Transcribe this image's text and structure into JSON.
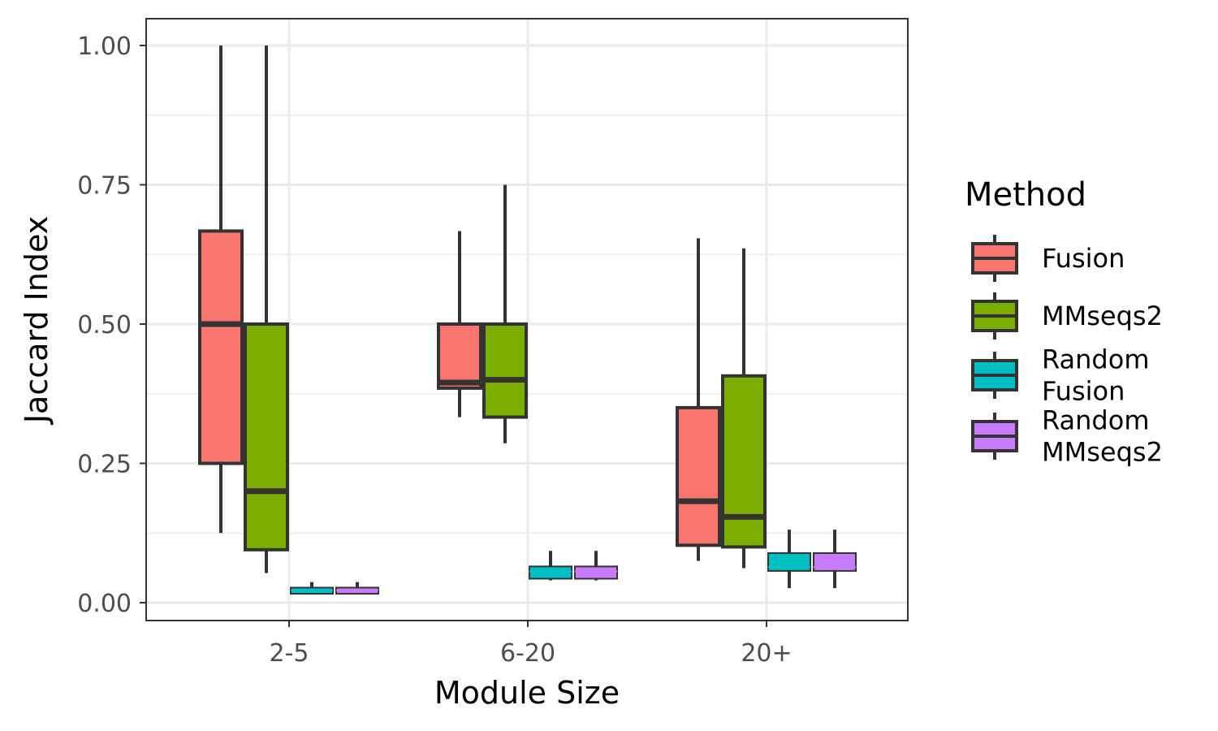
{
  "chart_data": {
    "type": "boxplot",
    "xlabel": "Module Size",
    "ylabel": "Jaccard Index",
    "categories": [
      "2-5",
      "6-20",
      "20+"
    ],
    "ylim": [
      -0.03,
      1.05
    ],
    "yticks": [
      {
        "value": 0.0,
        "label": "0.00"
      },
      {
        "value": 0.25,
        "label": "0.25"
      },
      {
        "value": 0.5,
        "label": "0.50"
      },
      {
        "value": 0.75,
        "label": "0.75"
      },
      {
        "value": 1.0,
        "label": "1.00"
      }
    ],
    "grid": true,
    "legend": {
      "title": "Method",
      "placement": "right",
      "items": [
        {
          "label_lines": [
            "Fusion"
          ]
        },
        {
          "label_lines": [
            "MMseqs2"
          ]
        },
        {
          "label_lines": [
            "Random",
            "Fusion"
          ]
        },
        {
          "label_lines": [
            "Random",
            "MMseqs2"
          ]
        }
      ]
    },
    "series": [
      {
        "color": "#F8766D",
        "boxes": [
          {
            "lower": 0.125,
            "q1": 0.25,
            "median": 0.5,
            "q3": 0.667,
            "upper": 1.0
          },
          {
            "lower": 0.333,
            "q1": 0.385,
            "median": 0.395,
            "q3": 0.5,
            "upper": 0.667
          },
          {
            "lower": 0.075,
            "q1": 0.103,
            "median": 0.182,
            "q3": 0.35,
            "upper": 0.654
          }
        ]
      },
      {
        "color": "#7CAE00",
        "boxes": [
          {
            "lower": 0.053,
            "q1": 0.095,
            "median": 0.2,
            "q3": 0.5,
            "upper": 1.0
          },
          {
            "lower": 0.286,
            "q1": 0.333,
            "median": 0.4,
            "q3": 0.5,
            "upper": 0.75
          },
          {
            "lower": 0.062,
            "q1": 0.1,
            "median": 0.154,
            "q3": 0.407,
            "upper": 0.636
          }
        ]
      },
      {
        "color": "#00BFC4",
        "boxes": [
          {
            "lower": 0.016,
            "q1": 0.016,
            "median": 0.022,
            "q3": 0.027,
            "upper": 0.037
          },
          {
            "lower": 0.04,
            "q1": 0.043,
            "median": 0.056,
            "q3": 0.065,
            "upper": 0.093
          },
          {
            "lower": 0.026,
            "q1": 0.057,
            "median": 0.064,
            "q3": 0.089,
            "upper": 0.131
          }
        ]
      },
      {
        "color": "#C77CFF",
        "boxes": [
          {
            "lower": 0.016,
            "q1": 0.016,
            "median": 0.022,
            "q3": 0.027,
            "upper": 0.037
          },
          {
            "lower": 0.04,
            "q1": 0.043,
            "median": 0.056,
            "q3": 0.065,
            "upper": 0.093
          },
          {
            "lower": 0.026,
            "q1": 0.057,
            "median": 0.064,
            "q3": 0.089,
            "upper": 0.131
          }
        ]
      }
    ]
  }
}
